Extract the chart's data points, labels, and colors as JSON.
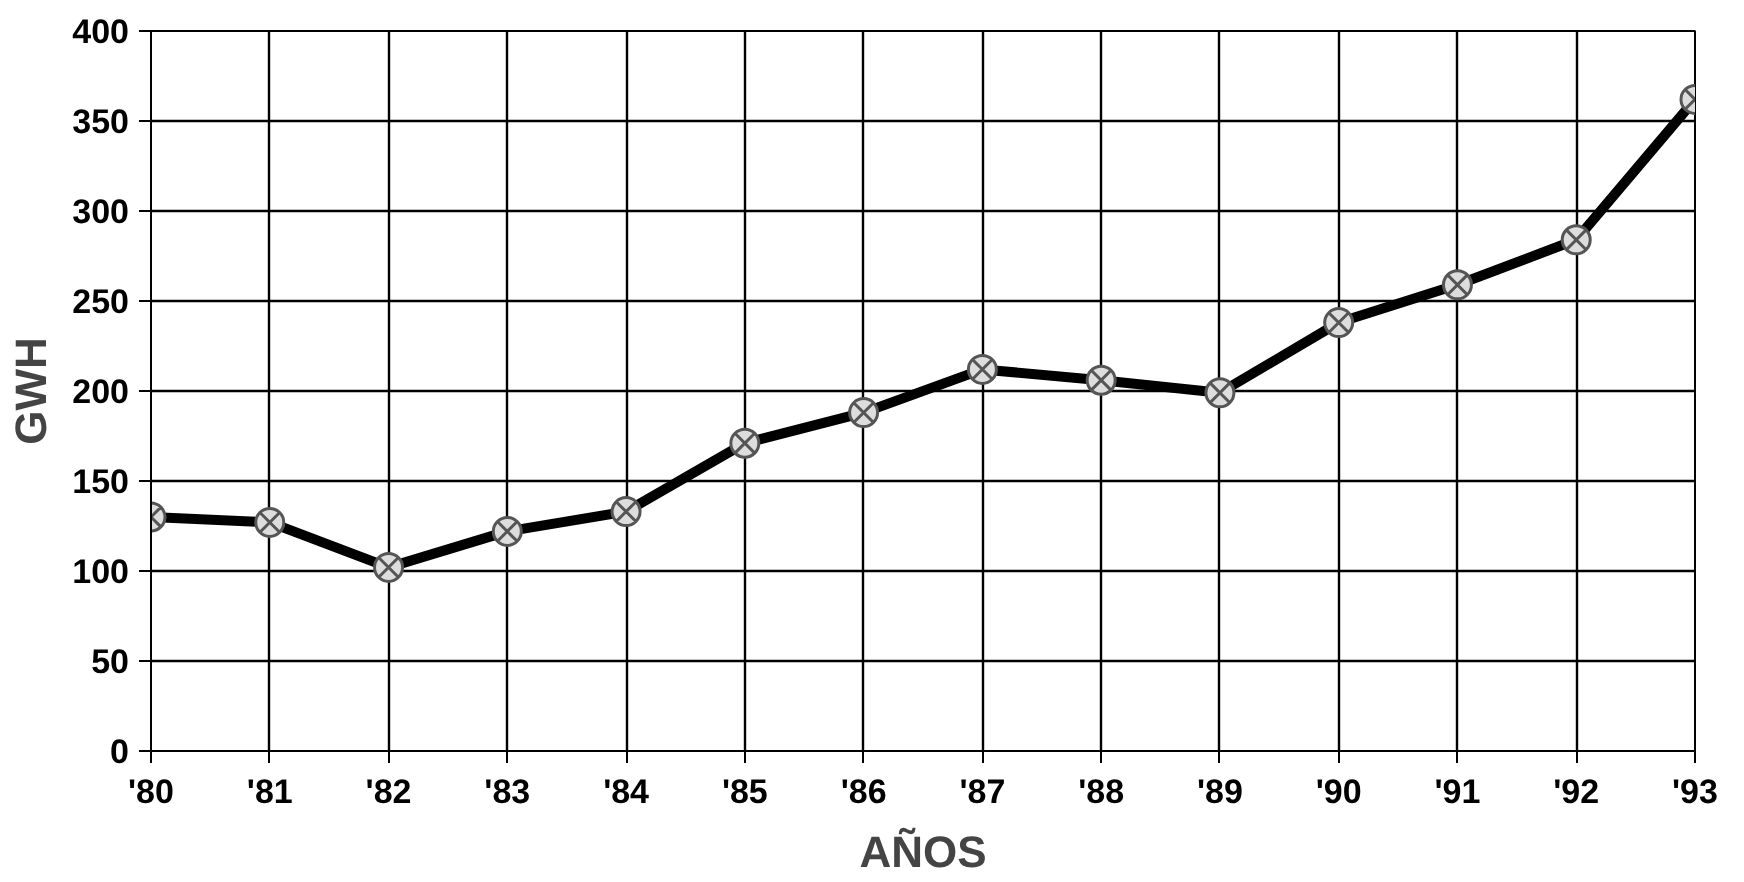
{
  "chart_data": {
    "type": "line",
    "xlabel": "AÑOS",
    "ylabel": "GWH",
    "categories": [
      "'80",
      "'81",
      "'82",
      "'83",
      "'84",
      "'85",
      "'86",
      "'87",
      "'88",
      "'89",
      "'90",
      "'91",
      "'92",
      "'93"
    ],
    "series": [
      {
        "color": "#000000",
        "values": [
          130,
          127,
          102,
          122,
          133,
          171,
          188,
          212,
          206,
          199,
          238,
          259,
          284,
          362
        ]
      }
    ],
    "ylim": [
      0,
      400
    ],
    "yticks": [
      0,
      50,
      100,
      150,
      200,
      250,
      300,
      350,
      400
    ],
    "grid": true,
    "marker": "cross",
    "line_style": "solid"
  }
}
